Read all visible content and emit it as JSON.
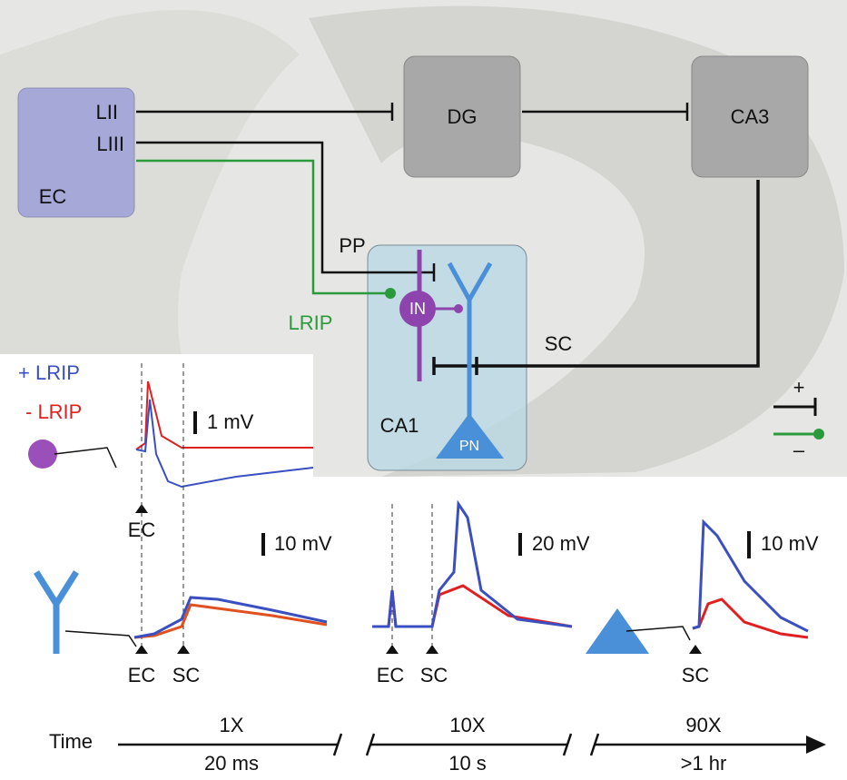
{
  "regions": {
    "ec": {
      "label": "EC",
      "layers": [
        "LII",
        "LIII"
      ]
    },
    "dg": "DG",
    "ca3": "CA3",
    "ca1": "CA1"
  },
  "pathways": {
    "pp": "PP",
    "lrip": "LRIP",
    "sc": "SC"
  },
  "cells": {
    "in": "IN",
    "pn": "PN"
  },
  "legend": {
    "excitatory": "+",
    "inhibitory": "–"
  },
  "traces": [
    {
      "conditions": [
        "+ LRIP",
        "- LRIP"
      ],
      "scale": "1 mV",
      "stimuli": [
        "EC"
      ]
    },
    {
      "scale": "10 mV",
      "stimuli": [
        "EC",
        "SC"
      ]
    },
    {
      "scale": "20 mV",
      "stimuli": [
        "EC",
        "SC"
      ]
    },
    {
      "scale": "10 mV",
      "stimuli": [
        "SC"
      ]
    }
  ],
  "timeline": {
    "label": "Time",
    "segments": [
      {
        "factor": "1X",
        "duration": "20 ms"
      },
      {
        "factor": "10X",
        "duration": "10 s"
      },
      {
        "factor": "90X",
        "duration": ">1 hr"
      }
    ]
  }
}
